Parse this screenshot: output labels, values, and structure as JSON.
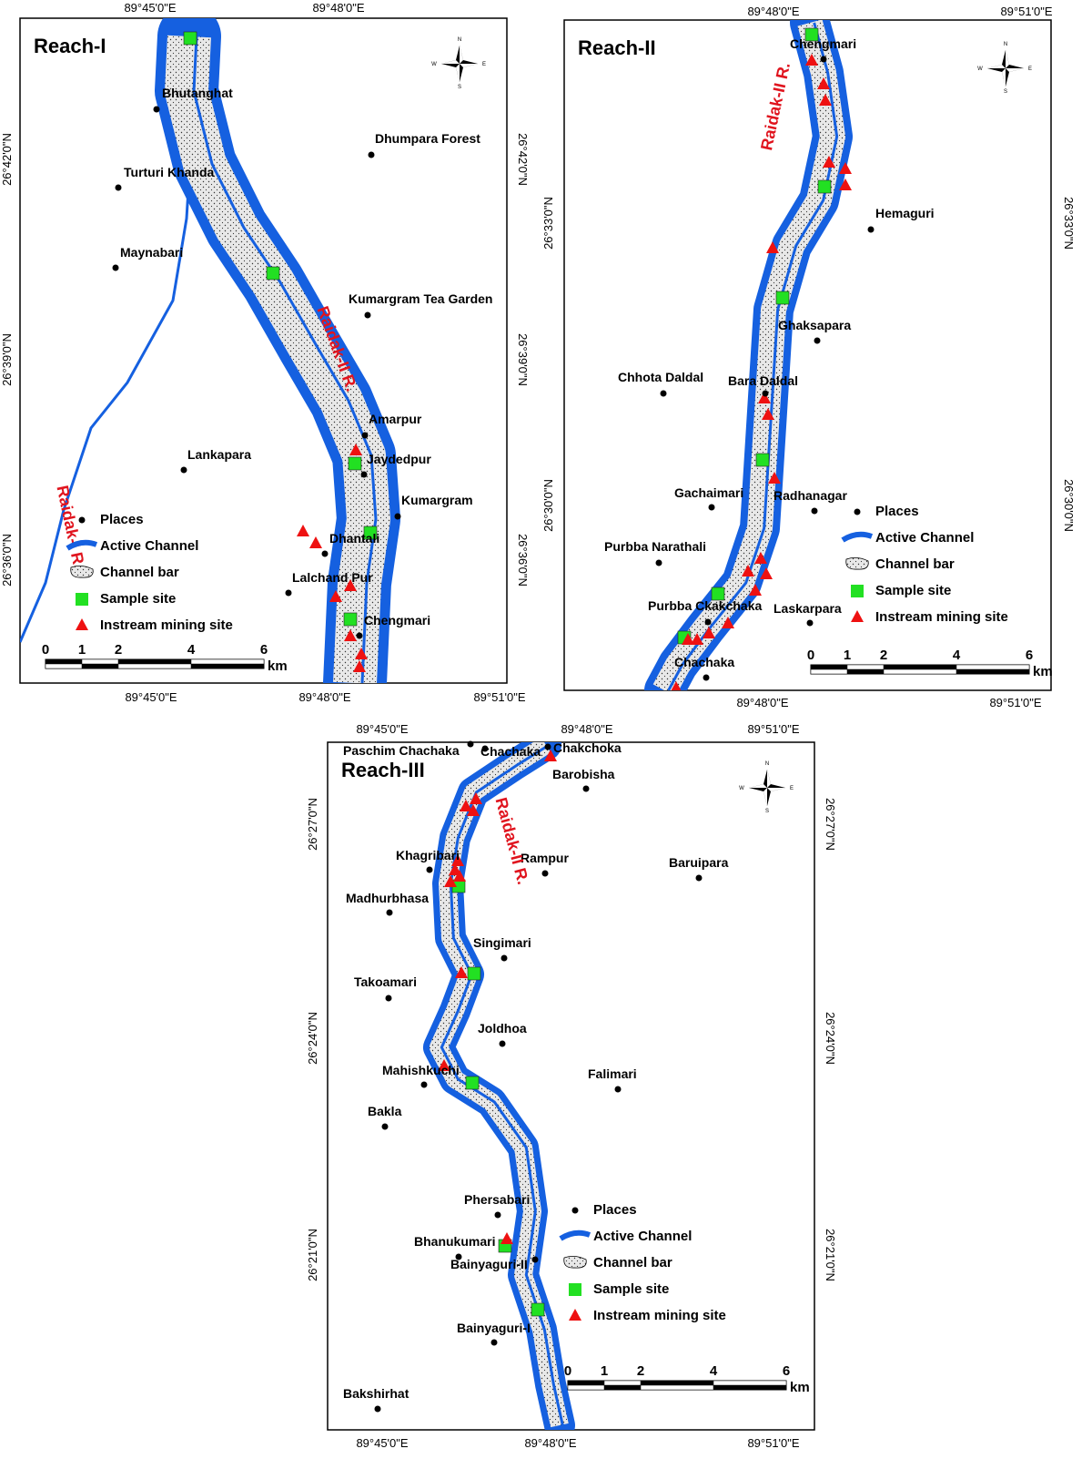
{
  "maps": [
    {
      "title": "Reach-I",
      "rivers": [
        "Raidak-II R.",
        "Raidak-I R."
      ],
      "top_longitudes": [
        "89°45'0\"E",
        "89°48'0\"E"
      ],
      "bottom_longitudes": [
        "89°45'0\"E",
        "89°48'0\"E",
        "89°51'0\"E"
      ],
      "left_latitudes": [
        "26°42'0\"N",
        "26°39'0\"N",
        "26°36'0\"N"
      ],
      "right_latitudes": [
        "26°42'0\"N",
        "26°39'0\"N",
        "26°36'0\"N"
      ],
      "places": [
        "Bhutanghat",
        "Turturi Khanda",
        "Dhumpara Forest",
        "Maynabari",
        "Kumargram Tea Garden",
        "Amarpur",
        "Jaydedpur",
        "Lankapara",
        "Kumargram",
        "Dhantali",
        "Lalchand Pur",
        "Chengmari"
      ]
    },
    {
      "title": "Reach-II",
      "rivers": [
        "Raidak-II R."
      ],
      "top_longitudes": [
        "89°48'0\"E",
        "89°51'0\"E"
      ],
      "bottom_longitudes": [
        "89°48'0\"E",
        "89°51'0\"E"
      ],
      "left_latitudes": [
        "26°33'0\"N",
        "26°30'0\"N"
      ],
      "right_latitudes": [
        "26°33'0\"N",
        "26°30'0\"N"
      ],
      "places": [
        "Chengmari",
        "Hemaguri",
        "Ghaksapara",
        "Chhota Daldal",
        "Bara Daldal",
        "Gachaimari",
        "Radhanagar",
        "Purbba Narathali",
        "Purbba Ckakchaka",
        "Laskarpara",
        "Chachaka"
      ]
    },
    {
      "title": "Reach-III",
      "rivers": [
        "Raidak-II R."
      ],
      "top_longitudes": [
        "89°45'0\"E",
        "89°48'0\"E",
        "89°51'0\"E"
      ],
      "bottom_longitudes": [
        "89°45'0\"E",
        "89°48'0\"E",
        "89°51'0\"E"
      ],
      "left_latitudes": [
        "26°27'0\"N",
        "26°24'0\"N",
        "26°21'0\"N"
      ],
      "right_latitudes": [
        "26°27'0\"N",
        "26°24'0\"N",
        "26°21'0\"N"
      ],
      "places": [
        "Paschim Chachaka",
        "Chachaka",
        "Chakchoka",
        "Barobisha",
        "Khagribari",
        "Rampur",
        "Baruipara",
        "Madhurbhasa",
        "Singimari",
        "Takoamari",
        "Joldhoa",
        "Mahishkuchi",
        "Falimari",
        "Bakla",
        "Phersabari",
        "Bhanukumari",
        "Bainyaguri-II",
        "Bainyaguri-I",
        "Bakshirhat"
      ]
    }
  ],
  "legend": [
    "Places",
    "Active Channel",
    "Channel bar",
    "Sample site",
    "Instream mining site"
  ],
  "scale": {
    "ticks": [
      0,
      1,
      2,
      4,
      6
    ],
    "unit": "km"
  },
  "compass": [
    "N",
    "S",
    "E",
    "W"
  ]
}
